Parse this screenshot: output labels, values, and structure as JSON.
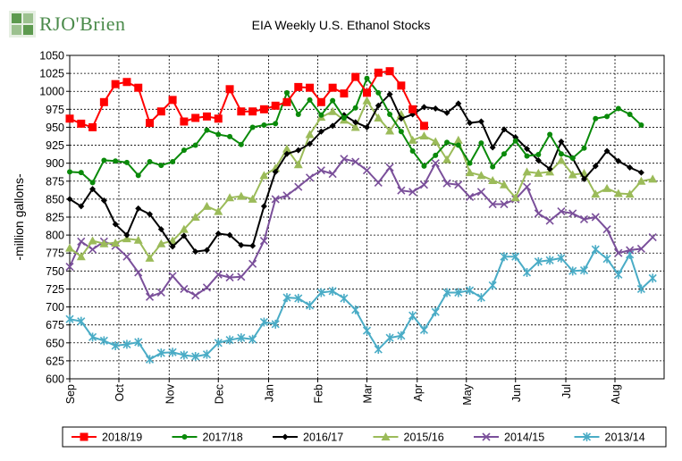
{
  "logo": {
    "text": "RJO'Brien"
  },
  "chart_data": {
    "type": "line",
    "title": "EIA Weekly U.S. Ethanol Stocks",
    "xlabel": "",
    "ylabel": "-million gallons-",
    "ylim": [
      600,
      1050
    ],
    "ytick_step": 25,
    "grid": true,
    "legend_position": "bottom",
    "x_tick_labels": [
      "Sep",
      "Oct",
      "Nov",
      "Dec",
      "Jan",
      "Feb",
      "Mar",
      "Apr",
      "May",
      "Jun",
      "Jul",
      "Aug"
    ],
    "x_tick_weeks": [
      0,
      4.3,
      8.7,
      13,
      17.4,
      21.7,
      26,
      30.4,
      34.7,
      39,
      43.4,
      47.7
    ],
    "x_week_max": 52,
    "series": [
      {
        "name": "2018/19",
        "color": "#ff0000",
        "marker": "square",
        "values": [
          962,
          955,
          950,
          985,
          1010,
          1013,
          1005,
          956,
          972,
          988,
          958,
          963,
          965,
          962,
          1003,
          972,
          972,
          975,
          980,
          985,
          1006,
          1005,
          985,
          1005,
          997,
          1020,
          998,
          1026,
          1028,
          1008,
          975,
          952
        ]
      },
      {
        "name": "2017/18",
        "color": "#0a8a0a",
        "marker": "circle",
        "values": [
          888,
          887,
          873,
          904,
          903,
          901,
          883,
          902,
          897,
          902,
          918,
          925,
          946,
          940,
          937,
          926,
          950,
          953,
          955,
          998,
          968,
          988,
          967,
          987,
          963,
          977,
          1018,
          998,
          968,
          944,
          917,
          896,
          911,
          929,
          925,
          900,
          928,
          895,
          913,
          931,
          910,
          912,
          940,
          913,
          907,
          921,
          962,
          965,
          976,
          968,
          953
        ]
      },
      {
        "name": "2016/17",
        "color": "#000000",
        "marker": "diamond",
        "values": [
          850,
          840,
          864,
          848,
          815,
          800,
          837,
          829,
          808,
          784,
          799,
          777,
          779,
          802,
          800,
          786,
          785,
          840,
          888,
          913,
          918,
          927,
          944,
          952,
          967,
          957,
          950,
          980,
          996,
          962,
          968,
          978,
          976,
          970,
          983,
          956,
          958,
          922,
          947,
          936,
          920,
          904,
          892,
          930,
          907,
          878,
          896,
          917,
          903,
          894,
          887
        ]
      },
      {
        "name": "2015/16",
        "color": "#9bbb59",
        "marker": "triangle",
        "values": [
          782,
          770,
          792,
          788,
          789,
          795,
          793,
          768,
          788,
          792,
          808,
          825,
          840,
          833,
          852,
          854,
          850,
          883,
          893,
          920,
          898,
          940,
          964,
          972,
          960,
          950,
          987,
          963,
          945,
          968,
          932,
          938,
          930,
          905,
          932,
          887,
          883,
          876,
          870,
          852,
          888,
          886,
          888,
          904,
          884,
          886,
          857,
          865,
          858,
          857,
          875,
          878
        ]
      },
      {
        "name": "2014/15",
        "color": "#7a4f9a",
        "marker": "x",
        "values": [
          756,
          791,
          780,
          791,
          785,
          770,
          748,
          714,
          720,
          743,
          725,
          716,
          727,
          745,
          741,
          742,
          760,
          792,
          850,
          855,
          867,
          880,
          890,
          885,
          906,
          902,
          890,
          873,
          894,
          862,
          860,
          870,
          900,
          872,
          870,
          853,
          860,
          843,
          843,
          850,
          867,
          830,
          820,
          833,
          830,
          822,
          825,
          808,
          775,
          779,
          781,
          797
        ]
      },
      {
        "name": "2013/14",
        "color": "#4aacc6",
        "marker": "asterisk",
        "values": [
          683,
          680,
          658,
          653,
          646,
          648,
          651,
          627,
          636,
          637,
          633,
          631,
          634,
          650,
          654,
          657,
          655,
          679,
          676,
          713,
          712,
          702,
          720,
          722,
          712,
          696,
          667,
          641,
          657,
          660,
          688,
          668,
          693,
          720,
          720,
          723,
          713,
          730,
          770,
          770,
          748,
          763,
          765,
          768,
          750,
          751,
          780,
          767,
          745,
          773,
          725,
          740
        ]
      }
    ]
  }
}
